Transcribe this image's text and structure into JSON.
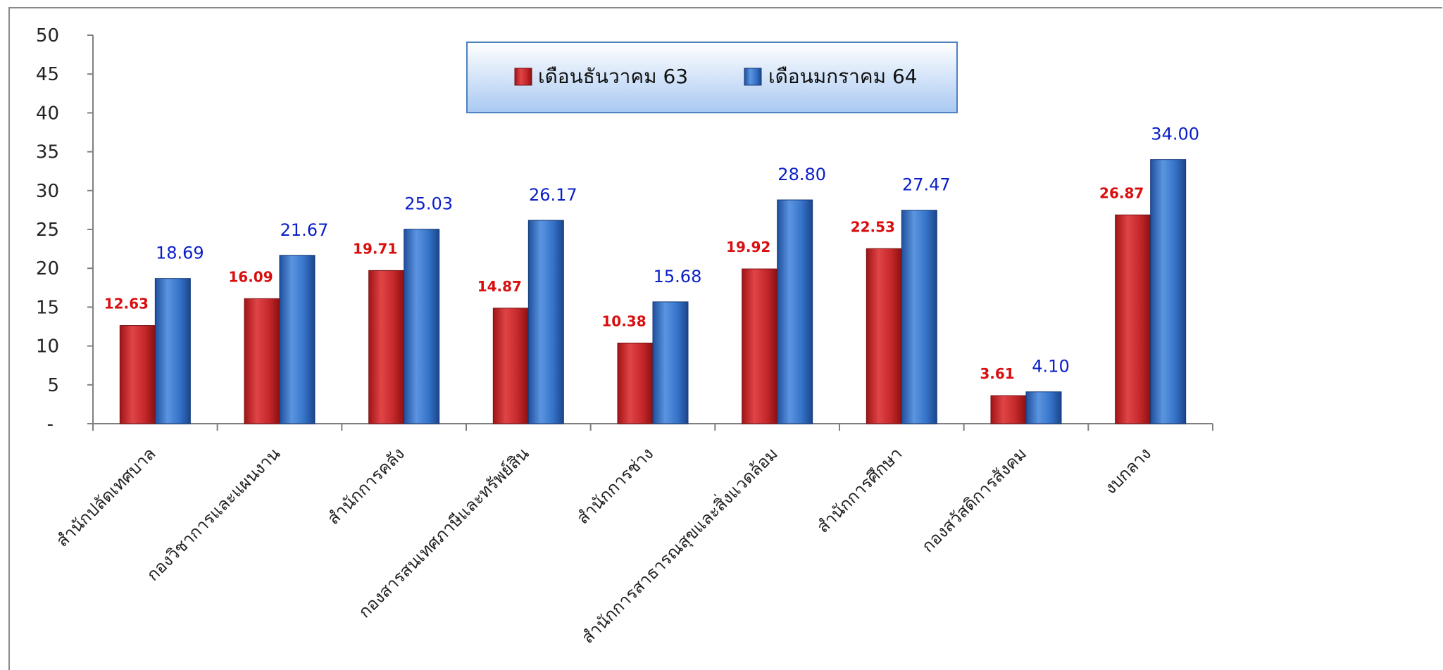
{
  "chart_data": {
    "type": "bar",
    "categories": [
      "สำนักปลัดเทศบาล",
      "กองวิชาการและแผนงาน",
      "สำนักการคลัง",
      "กองสารสนเทศภาษีและทรัพย์สิน",
      "สำนักการช่าง",
      "สำนักการสาธารณสุขและสิ่งแวดล้อม",
      "สำนักการศึกษา",
      "กองสวัสดิการสังคม",
      "งบกลาง"
    ],
    "series": [
      {
        "name": "เดือนธันวาคม  63",
        "color": "#c8282a",
        "values": [
          12.63,
          16.09,
          19.71,
          14.87,
          10.38,
          19.92,
          22.53,
          3.61,
          26.87
        ],
        "labels": [
          "12.63",
          "16.09",
          "19.71",
          "14.87",
          "10.38",
          "19.92",
          "22.53",
          "3.61",
          "26.87"
        ]
      },
      {
        "name": "เดือนมกราคม 64",
        "color": "#2f6fc8",
        "values": [
          18.69,
          21.67,
          25.03,
          26.17,
          15.68,
          28.8,
          27.47,
          4.1,
          34.0
        ],
        "labels": [
          "18.69",
          "21.67",
          "25.03",
          "26.17",
          "15.68",
          "28.80",
          "27.47",
          "4.10",
          "34.00"
        ]
      }
    ],
    "ylim": [
      0,
      50
    ],
    "yticks": [
      0,
      5,
      10,
      15,
      20,
      25,
      30,
      35,
      40,
      45,
      50
    ],
    "ytick_labels": [
      "-",
      "5",
      "10",
      "15",
      "20",
      "25",
      "30",
      "35",
      "40",
      "45",
      "50"
    ],
    "legend_position": "top-center",
    "grid": false
  }
}
